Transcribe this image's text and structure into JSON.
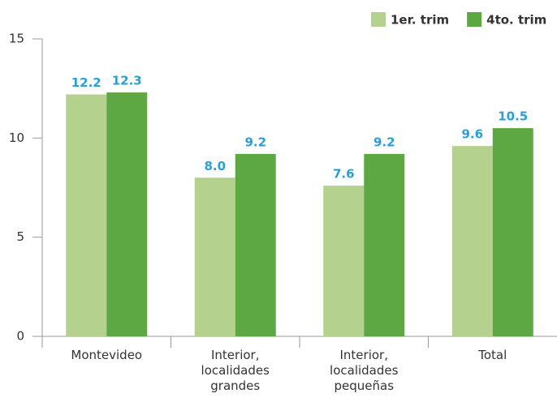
{
  "chart_data": {
    "type": "bar",
    "categories": [
      "Montevideo",
      "Interior, localidades grandes",
      "Interior, localidades pequeñas",
      "Total"
    ],
    "series": [
      {
        "name": "1er. trim",
        "color": "#b5d18e",
        "values": [
          12.2,
          8.0,
          7.6,
          9.6
        ],
        "value_labels": [
          "12.2",
          "8.0",
          "7.6",
          "9.6"
        ]
      },
      {
        "name": "4to. trim",
        "color": "#5ea843",
        "values": [
          12.3,
          9.2,
          9.2,
          10.5
        ]
      }
    ],
    "ylim": [
      0,
      15
    ],
    "yticks": [
      0,
      5,
      10,
      15
    ],
    "legend": "top-right",
    "grid": false
  }
}
